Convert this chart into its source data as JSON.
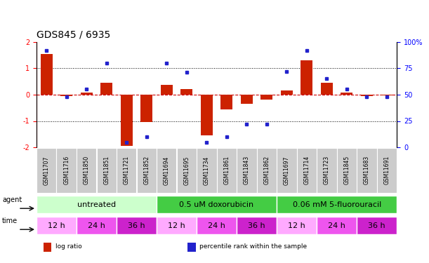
{
  "title": "GDS845 / 6935",
  "samples": [
    "GSM11707",
    "GSM11716",
    "GSM11850",
    "GSM11851",
    "GSM11721",
    "GSM11852",
    "GSM11694",
    "GSM11695",
    "GSM11734",
    "GSM11861",
    "GSM11843",
    "GSM11862",
    "GSM11697",
    "GSM11714",
    "GSM11723",
    "GSM11845",
    "GSM11683",
    "GSM11691"
  ],
  "log_ratio": [
    1.55,
    -0.05,
    0.08,
    0.45,
    -1.95,
    -1.05,
    0.38,
    0.22,
    -1.55,
    -0.55,
    -0.35,
    -0.18,
    0.15,
    1.3,
    0.45,
    0.08,
    -0.05,
    -0.02
  ],
  "percentile": [
    92,
    48,
    55,
    80,
    5,
    10,
    80,
    71,
    5,
    10,
    22,
    22,
    72,
    92,
    65,
    55,
    48,
    48
  ],
  "ylim_left": [
    -2,
    2
  ],
  "ylim_right": [
    0,
    100
  ],
  "yticks_left": [
    -2,
    -1,
    0,
    1,
    2
  ],
  "yticks_right": [
    0,
    25,
    50,
    75,
    100
  ],
  "ytick_labels_right": [
    "0",
    "25",
    "50",
    "75",
    "100%"
  ],
  "bar_color": "#cc2200",
  "dot_color": "#2222cc",
  "zero_line_color": "#cc0000",
  "agent_groups": [
    {
      "label": "untreated",
      "start": 0,
      "end": 6,
      "color": "#ccffcc"
    },
    {
      "label": "0.5 uM doxorubicin",
      "start": 6,
      "end": 12,
      "color": "#44cc44"
    },
    {
      "label": "0.06 mM 5-fluorouracil",
      "start": 12,
      "end": 18,
      "color": "#44cc44"
    }
  ],
  "time_groups": [
    {
      "label": "12 h",
      "start": 0,
      "end": 2,
      "color": "#ffaaff"
    },
    {
      "label": "24 h",
      "start": 2,
      "end": 4,
      "color": "#ee55ee"
    },
    {
      "label": "36 h",
      "start": 4,
      "end": 6,
      "color": "#cc22cc"
    },
    {
      "label": "12 h",
      "start": 6,
      "end": 8,
      "color": "#ffaaff"
    },
    {
      "label": "24 h",
      "start": 8,
      "end": 10,
      "color": "#ee55ee"
    },
    {
      "label": "36 h",
      "start": 10,
      "end": 12,
      "color": "#cc22cc"
    },
    {
      "label": "12 h",
      "start": 12,
      "end": 14,
      "color": "#ffaaff"
    },
    {
      "label": "24 h",
      "start": 14,
      "end": 16,
      "color": "#ee55ee"
    },
    {
      "label": "36 h",
      "start": 16,
      "end": 18,
      "color": "#cc22cc"
    }
  ],
  "legend_items": [
    {
      "label": "log ratio",
      "color": "#cc2200"
    },
    {
      "label": "percentile rank within the sample",
      "color": "#2222cc"
    }
  ],
  "sample_bg_color": "#cccccc",
  "title_fontsize": 10,
  "tick_fontsize": 7,
  "label_fontsize": 7,
  "agent_fontsize": 8,
  "time_fontsize": 8,
  "sample_fontsize": 5.5
}
